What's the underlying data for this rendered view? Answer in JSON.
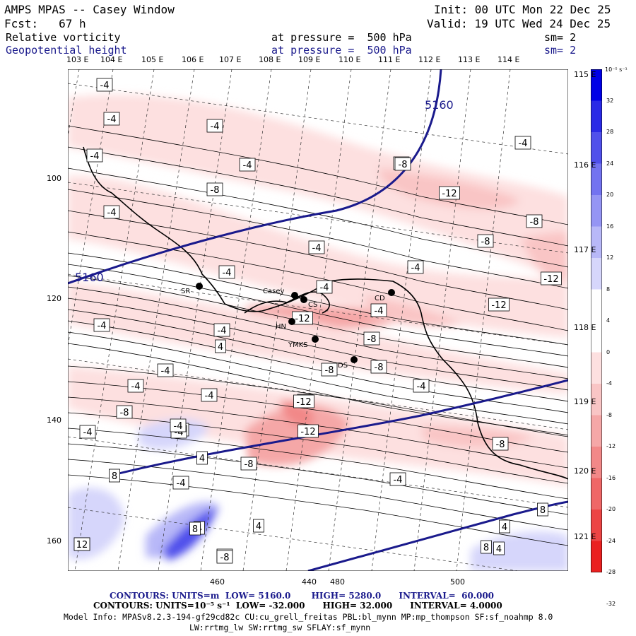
{
  "header": {
    "title": "AMPS MPAS -- Casey Window",
    "init": "Init: 00 UTC Mon 22 Dec 25",
    "fcst": "Fcst:   67 h",
    "valid": "Valid: 19 UTC Wed 24 Dec 25",
    "field1_name": "Relative vorticity",
    "field1_level": "at pressure =  500 hPa",
    "field1_sm": "sm= 2",
    "field2_name": "Geopotential height",
    "field2_level": "at pressure =  500 hPa",
    "field2_sm": "sm= 2"
  },
  "lon_top_labels": [
    "103 E",
    "104 E",
    "105 E",
    "106 E",
    "107 E",
    "108 E",
    "109 E",
    "110 E",
    "111 E",
    "112 E",
    "113 E",
    "114 E"
  ],
  "lon_right_labels": [
    "115 E",
    "116 E",
    "117 E",
    "118 E",
    "119 E",
    "120 E",
    "121 E"
  ],
  "y_axis_labels": [
    "100",
    "120",
    "140",
    "160"
  ],
  "x_axis_labels": [
    "440",
    "460",
    "480",
    "500"
  ],
  "colorbar": {
    "unit": "10⁻⁵ s⁻¹",
    "ticks": [
      "32",
      "28",
      "24",
      "20",
      "16",
      "12",
      "8",
      "4",
      "0",
      "-4",
      "-8",
      "-12",
      "-16",
      "-20",
      "-24",
      "-28",
      "-32"
    ],
    "colors": [
      "#0000e6",
      "#2a2ae6",
      "#5050eb",
      "#7373f0",
      "#9595f4",
      "#b8b8f8",
      "#d6d6fb",
      "#ffffff",
      "#ffffff",
      "#fde0e0",
      "#f9c5c5",
      "#f5a7a7",
      "#f28888",
      "#ef6767",
      "#ec4444",
      "#ea2020"
    ]
  },
  "stations": [
    {
      "code": "SR"
    },
    {
      "code": "Casey"
    },
    {
      "code": "CS"
    },
    {
      "code": "CD"
    },
    {
      "code": "HN"
    },
    {
      "code": "YMKS"
    },
    {
      "code": "DS"
    }
  ],
  "height_labels": [
    "5160",
    "5160"
  ],
  "vort_labels": [
    "-4",
    "-4",
    "-4",
    "-4",
    "-4",
    "-4",
    "-8",
    "-4",
    "-4",
    "-8",
    "-12",
    "-8",
    "-4",
    "-8",
    "-4",
    "-4",
    "-12",
    "-4",
    "-4",
    "-12",
    "-4",
    "-12",
    "-8",
    "-4",
    "-4",
    "4",
    "-8",
    "-8",
    "-4",
    "-8",
    "-4",
    "-8",
    "-4",
    "-8",
    "-4",
    "4",
    "-4",
    "-8",
    "-12",
    "-4",
    "-12",
    "-8",
    "4",
    "-8",
    "-4",
    "-4",
    "8",
    "4",
    "8",
    "-4",
    "8",
    "4",
    "12",
    "-8",
    "4",
    "8"
  ],
  "footer": {
    "line1": "CONTOURS: UNITS=m  LOW= 5160.0       HIGH= 5280.0      INTERVAL=  60.000",
    "line2": "CONTOURS: UNITS=10⁻⁵ s⁻¹  LOW= -32.000      HIGH= 32.000      INTERVAL= 4.0000",
    "line3": "Model Info: MPASv8.2.3-194-gf29cd82c CU:cu_grell_freitas PBL:bl_mynn MP:mp_thompson SF:sf_noahmp 8.0",
    "line4": "LW:rrtmg_lw SW:rrtmg_sw SFLAY:sf_mynn"
  }
}
